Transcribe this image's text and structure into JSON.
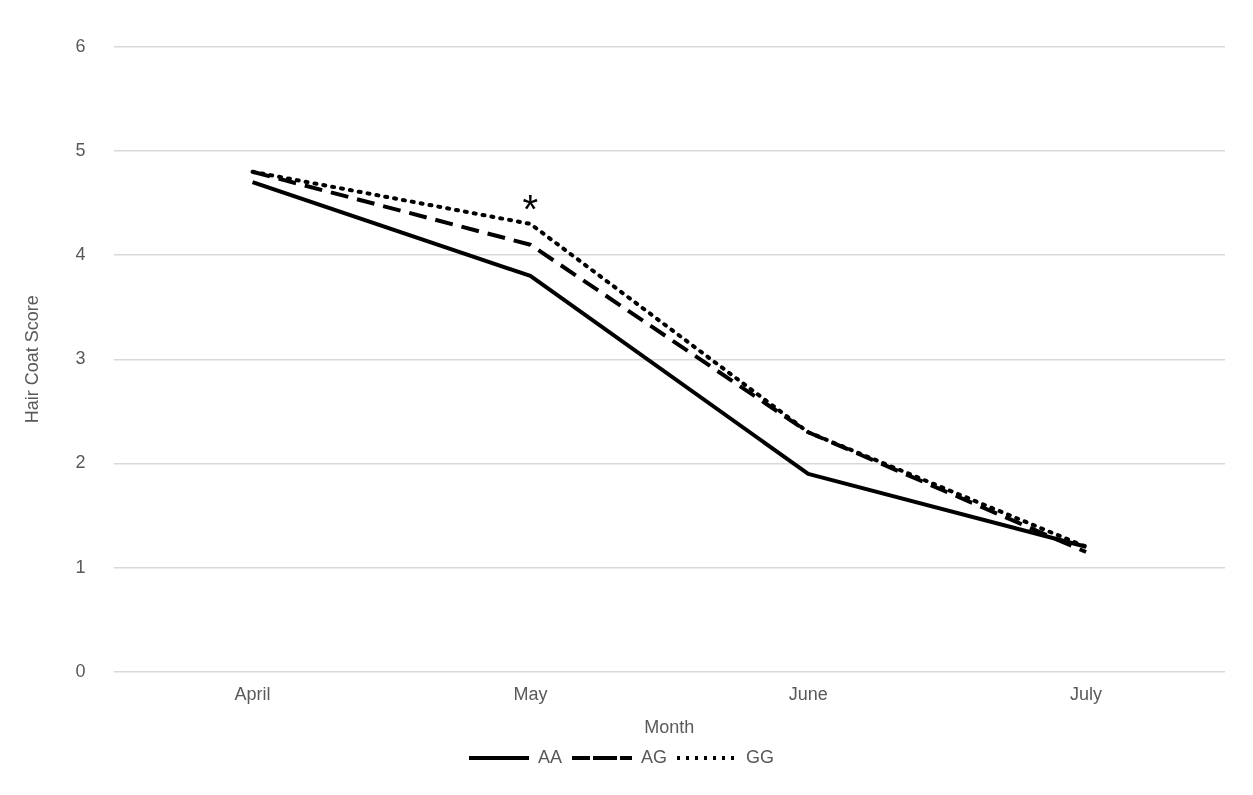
{
  "chart_data": {
    "type": "line",
    "xlabel": "Month",
    "ylabel": "Hair Coat Score",
    "categories": [
      "April",
      "May",
      "June",
      "July"
    ],
    "series": [
      {
        "name": "AA",
        "color": "#000000",
        "line_style": "solid",
        "values": [
          4.7,
          3.8,
          1.9,
          1.2
        ]
      },
      {
        "name": "AG",
        "color": "#000000",
        "line_style": "dashed",
        "values": [
          4.8,
          4.1,
          2.3,
          1.15
        ]
      },
      {
        "name": "GG",
        "color": "#000000",
        "line_style": "dotted",
        "values": [
          4.8,
          4.3,
          2.3,
          1.2
        ]
      }
    ],
    "ylim": [
      0,
      6
    ],
    "yticks": [
      0,
      1,
      2,
      3,
      4,
      5,
      6
    ],
    "grid": "y",
    "legend": "bottom",
    "marker": "none",
    "annotations": [
      {
        "text": "*",
        "x": "May",
        "y": 4.3
      }
    ]
  }
}
